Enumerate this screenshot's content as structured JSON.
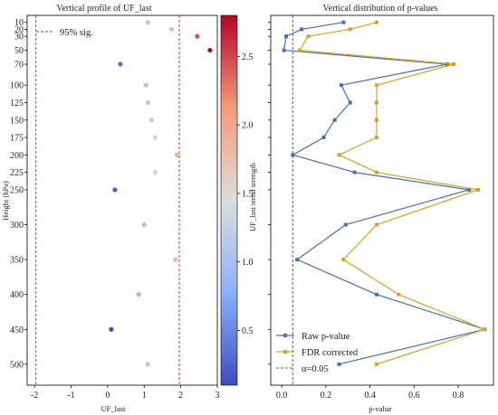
{
  "colors": {
    "raw": "#4a6fb5",
    "fdr": "#d9a21e",
    "sig": "#c0392b"
  },
  "chart_data": [
    {
      "type": "scatter",
      "title": "Vertical profile of UF_last",
      "xlabel": "UF_last",
      "ylabel": "Height (hPa)",
      "xlim": [
        -2.2,
        3.0
      ],
      "ylim": [
        0,
        530
      ],
      "y_inverted": true,
      "xticks": [
        "-2",
        "-1",
        "0",
        "1",
        "2",
        "3"
      ],
      "yticks": [
        "10",
        "20",
        "30",
        "50",
        "70",
        "100",
        "125",
        "150",
        "175",
        "200",
        "225",
        "250",
        "300",
        "350",
        "400",
        "450",
        "500"
      ],
      "ytick_values": [
        10,
        20,
        30,
        50,
        70,
        100,
        125,
        150,
        175,
        200,
        225,
        250,
        300,
        350,
        400,
        450,
        500
      ],
      "points": [
        {
          "level": 10,
          "value": 1.1
        },
        {
          "level": 20,
          "value": 1.75
        },
        {
          "level": 30,
          "value": 2.45
        },
        {
          "level": 50,
          "value": 2.8
        },
        {
          "level": 70,
          "value": 0.35
        },
        {
          "level": 100,
          "value": 1.05
        },
        {
          "level": 125,
          "value": 1.1
        },
        {
          "level": 150,
          "value": 1.2
        },
        {
          "level": 175,
          "value": 1.3
        },
        {
          "level": 200,
          "value": 1.9
        },
        {
          "level": 225,
          "value": 1.3
        },
        {
          "level": 250,
          "value": 0.2
        },
        {
          "level": 300,
          "value": 1.0
        },
        {
          "level": 350,
          "value": 1.85
        },
        {
          "level": 400,
          "value": 0.85
        },
        {
          "level": 450,
          "value": 0.1
        },
        {
          "level": 500,
          "value": 1.1
        }
      ],
      "reference_lines": [
        -1.96,
        1.96
      ],
      "legend": [
        "95% sig."
      ],
      "legend_placement": "top-left",
      "colorbar": {
        "label": "UF_last trend strength",
        "range": [
          0.1,
          2.8
        ],
        "ticks": [
          "0.5",
          "1.0",
          "1.5",
          "2.0",
          "2.5"
        ],
        "tick_values": [
          0.5,
          1.0,
          1.5,
          2.0,
          2.5
        ]
      },
      "grid": false
    },
    {
      "type": "line",
      "title": "Vertical distribution of p-values",
      "xlabel": "p-value",
      "xlim": [
        -0.05,
        0.96
      ],
      "xticks": [
        "0.0",
        "0.2",
        "0.4",
        "0.6",
        "0.8"
      ],
      "xtick_values": [
        0.0,
        0.2,
        0.4,
        0.6,
        0.8
      ],
      "ylim": [
        0,
        530
      ],
      "y_inverted": true,
      "levels": [
        10,
        20,
        30,
        50,
        70,
        100,
        125,
        150,
        175,
        200,
        225,
        250,
        300,
        350,
        400,
        450,
        500
      ],
      "series": [
        {
          "name": "Raw p-value",
          "values": [
            0.28,
            0.09,
            0.02,
            0.01,
            0.75,
            0.27,
            0.31,
            0.24,
            0.19,
            0.05,
            0.33,
            0.85,
            0.29,
            0.07,
            0.43,
            0.92,
            0.26
          ]
        },
        {
          "name": "FDR corrected",
          "values": [
            0.43,
            0.31,
            0.12,
            0.08,
            0.78,
            0.43,
            0.43,
            0.43,
            0.43,
            0.26,
            0.43,
            0.89,
            0.43,
            0.28,
            0.53,
            0.92,
            0.43
          ]
        }
      ],
      "reference_lines": [
        0.05
      ],
      "legend": [
        "Raw p-value",
        "FDR corrected",
        "α=0.05"
      ],
      "legend_placement": "lower-left",
      "grid": false
    }
  ]
}
